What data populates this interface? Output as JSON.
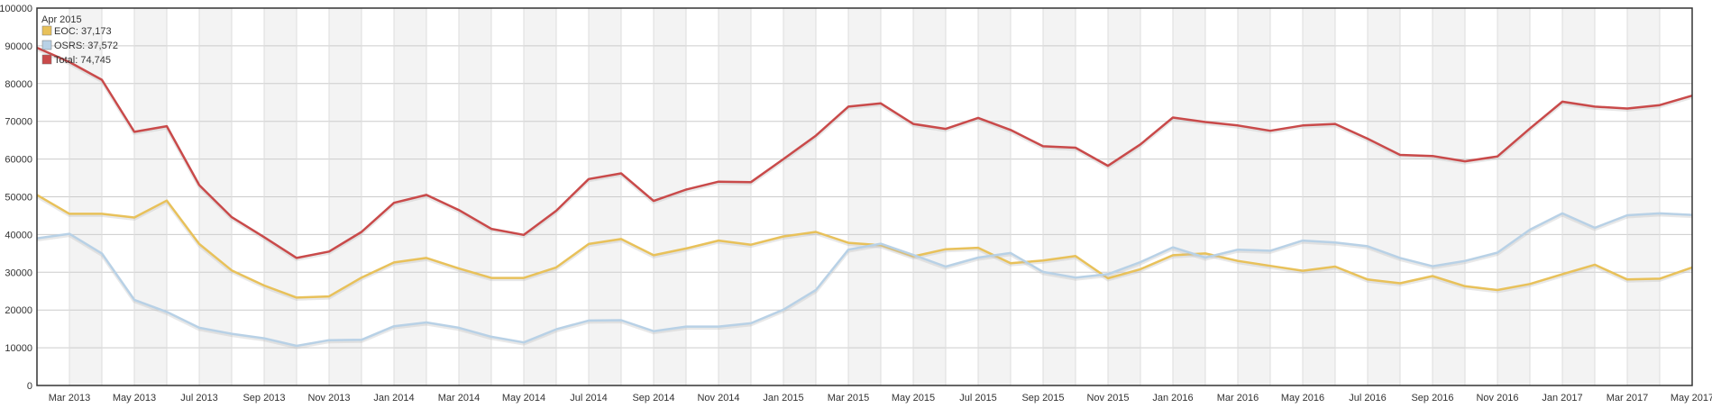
{
  "colors": {
    "eoc": "#e8c15a",
    "osrs": "#b8d1e6",
    "total": "#c94a4a",
    "band": "#f3f3f3",
    "grid": "#cccccc",
    "frame": "#333333"
  },
  "legend": {
    "header": "Apr 2015",
    "entries": [
      {
        "key": "eoc",
        "text": "EOC: 37,173"
      },
      {
        "key": "osrs",
        "text": "OSRS: 37,572"
      },
      {
        "key": "total",
        "text": "Total: 74,745"
      }
    ]
  },
  "chart_data": {
    "type": "line",
    "ylim": [
      0,
      100000
    ],
    "y_ticks": [
      "0",
      "10000",
      "20000",
      "30000",
      "40000",
      "50000",
      "60000",
      "70000",
      "80000",
      "90000",
      "100000"
    ],
    "x_labels": [
      "Mar 2013",
      "May 2013",
      "Jul 2013",
      "Sep 2013",
      "Nov 2013",
      "Jan 2014",
      "Mar 2014",
      "May 2014",
      "Jul 2014",
      "Sep 2014",
      "Nov 2014",
      "Jan 2015",
      "Mar 2015",
      "May 2015",
      "Jul 2015",
      "Sep 2015",
      "Nov 2015",
      "Jan 2016",
      "Mar 2016",
      "May 2016",
      "Jul 2016",
      "Sep 2016",
      "Nov 2016",
      "Jan 2017",
      "Mar 2017",
      "May 2017"
    ],
    "months": [
      "Feb 2013",
      "Mar 2013",
      "Apr 2013",
      "May 2013",
      "Jun 2013",
      "Jul 2013",
      "Aug 2013",
      "Sep 2013",
      "Oct 2013",
      "Nov 2013",
      "Dec 2013",
      "Jan 2014",
      "Feb 2014",
      "Mar 2014",
      "Apr 2014",
      "May 2014",
      "Jun 2014",
      "Jul 2014",
      "Aug 2014",
      "Sep 2014",
      "Oct 2014",
      "Nov 2014",
      "Dec 2014",
      "Jan 2015",
      "Feb 2015",
      "Mar 2015",
      "Apr 2015",
      "May 2015",
      "Jun 2015",
      "Jul 2015",
      "Aug 2015",
      "Sep 2015",
      "Oct 2015",
      "Nov 2015",
      "Dec 2015",
      "Jan 2016",
      "Feb 2016",
      "Mar 2016",
      "Apr 2016",
      "May 2016",
      "Jun 2016",
      "Jul 2016",
      "Aug 2016",
      "Sep 2016",
      "Oct 2016",
      "Nov 2016",
      "Dec 2016",
      "Jan 2017",
      "Feb 2017",
      "Mar 2017",
      "Apr 2017",
      "May 2017"
    ],
    "series": [
      {
        "key": "eoc",
        "values": [
          50500,
          45500,
          45500,
          44500,
          49000,
          37500,
          30500,
          26500,
          23300,
          23600,
          28600,
          32600,
          33800,
          31000,
          28500,
          28500,
          31300,
          37500,
          38800,
          34500,
          36300,
          38400,
          37300,
          39500,
          40700,
          37800,
          37173,
          34200,
          36100,
          36500,
          32400,
          33100,
          34300,
          28400,
          30800,
          34500,
          35000,
          33000,
          31700,
          30400,
          31500,
          28100,
          27100,
          29000,
          26300,
          25300,
          26900,
          29500,
          32000,
          28100,
          28300,
          31300
        ]
      },
      {
        "key": "osrs",
        "values": [
          39000,
          40200,
          35000,
          22700,
          19500,
          15300,
          13700,
          12500,
          10500,
          12000,
          12100,
          15700,
          16700,
          15300,
          12900,
          11400,
          14900,
          17200,
          17300,
          14400,
          15600,
          15600,
          16500,
          20100,
          25300,
          36000,
          37572,
          34600,
          31500,
          33900,
          35100,
          30100,
          28600,
          29500,
          32700,
          36600,
          33900,
          36000,
          35700,
          38400,
          37900,
          36900,
          33800,
          31600,
          33000,
          35200,
          41300,
          45600,
          41800,
          45100,
          45600,
          45200
        ]
      },
      {
        "key": "total",
        "values": [
          89500,
          85700,
          81000,
          67200,
          68700,
          53100,
          44600,
          39300,
          33800,
          35500,
          40700,
          48400,
          50500,
          46500,
          41500,
          39900,
          46300,
          54700,
          56200,
          48900,
          51900,
          54000,
          53900,
          60000,
          66200,
          73900,
          74745,
          69300,
          68000,
          70900,
          67700,
          63400,
          63000,
          58200,
          63900,
          71000,
          69800,
          68900,
          67500,
          68900,
          69300,
          65400,
          61100,
          60800,
          59400,
          60700,
          68100,
          75200,
          73900,
          73400,
          74300,
          76800
        ]
      }
    ]
  }
}
